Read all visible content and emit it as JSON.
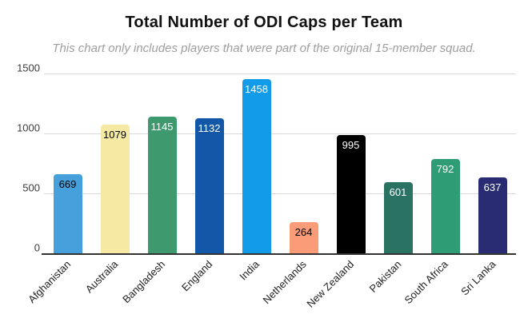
{
  "chart_data": {
    "type": "bar",
    "title": "Total Number of ODI Caps per Team",
    "subtitle": "This chart only includes players that were part of the original 15-member squad.",
    "categories": [
      "Afghanistan",
      "Australia",
      "Bangladesh",
      "England",
      "India",
      "Netherlands",
      "New Zealand",
      "Pakistan",
      "South Africa",
      "Sri Lanka"
    ],
    "values": [
      669,
      1079,
      1145,
      1132,
      1458,
      264,
      995,
      601,
      792,
      637
    ],
    "bar_colors": [
      "#45A0DC",
      "#F5E9A4",
      "#3E9A6E",
      "#1257A8",
      "#129BE8",
      "#F99C77",
      "#000000",
      "#2A7262",
      "#2E9C74",
      "#292C72"
    ],
    "value_label_colors": [
      "#000000",
      "#000000",
      "#ffffff",
      "#ffffff",
      "#ffffff",
      "#000000",
      "#ffffff",
      "#ffffff",
      "#ffffff",
      "#ffffff"
    ],
    "xlabel": "",
    "ylabel": "",
    "ylim": [
      0,
      1500
    ],
    "yticks": [
      0,
      500,
      1000,
      1500
    ],
    "grid": true,
    "legend": "none",
    "colors": {
      "gridline": "#d9d9d9",
      "baseline": "#333333",
      "axis_text": "#3c3c3c",
      "title_text": "#111111",
      "subtitle_text": "#9e9e9e",
      "background": "#ffffff"
    }
  }
}
